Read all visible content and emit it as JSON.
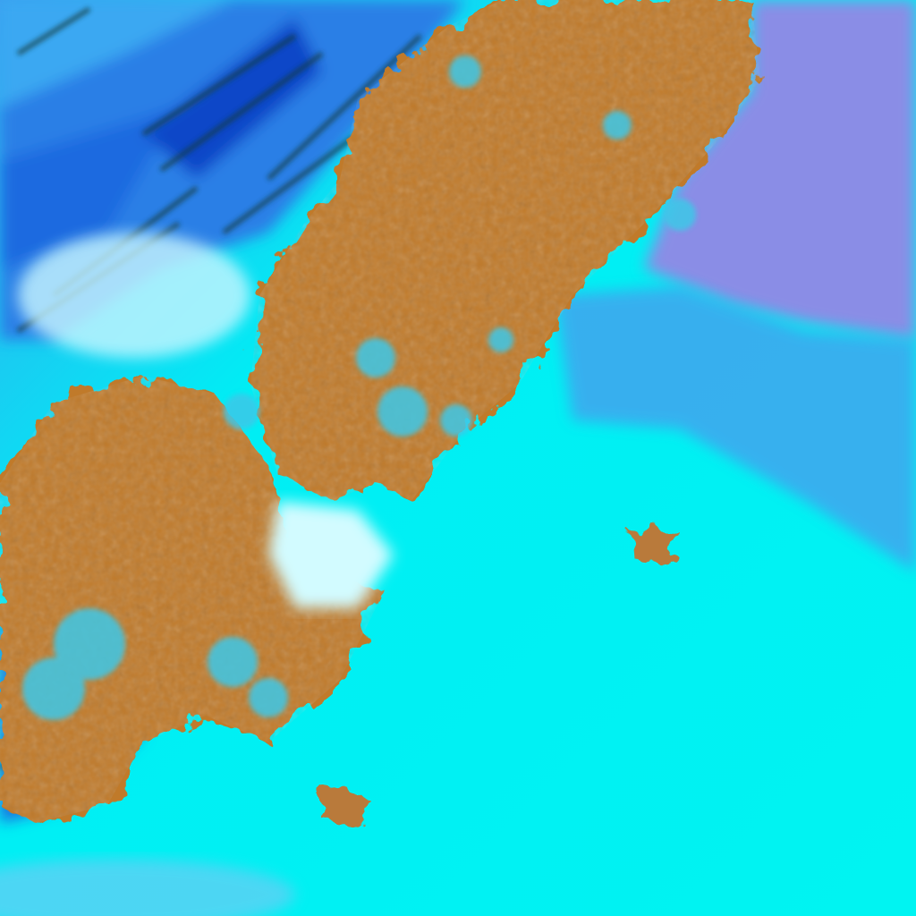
{
  "image": {
    "kind": "false-color satellite imagery",
    "colors": {
      "cloud_cyan": "#00f6f4",
      "cloud_white": "#d8fbff",
      "land_orange": "#c07a2c",
      "high_cloud_blue": "#1a73e0",
      "deep_blue": "#0a3fc8",
      "sea_violet": "#8e90e8",
      "dark_green": "#1d4a2a"
    }
  }
}
